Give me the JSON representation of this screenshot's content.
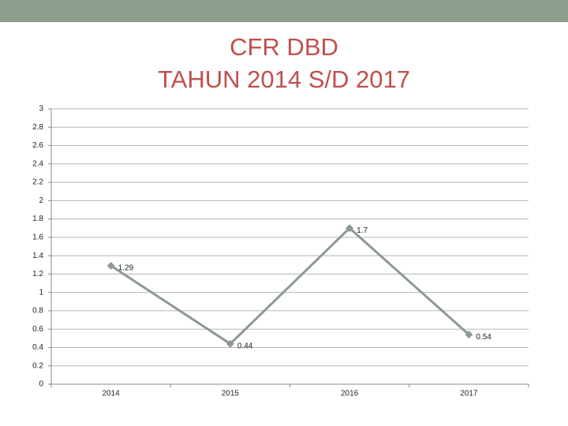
{
  "chart_data": {
    "type": "line",
    "title": "CFR DBD",
    "subtitle": "TAHUN 2014 S/D 2017",
    "categories": [
      "2014",
      "2015",
      "2016",
      "2017"
    ],
    "series": [
      {
        "name": "CFR DBD",
        "color": "#8c9994",
        "values": [
          1.29,
          0.44,
          1.7,
          0.54
        ]
      }
    ],
    "ylim": [
      0,
      3
    ],
    "yticks": [
      0,
      0.2,
      0.4,
      0.6,
      0.8,
      1,
      1.2,
      1.4,
      1.6,
      1.8,
      2,
      2.2,
      2.4,
      2.6,
      2.8,
      3
    ],
    "grid": true
  }
}
